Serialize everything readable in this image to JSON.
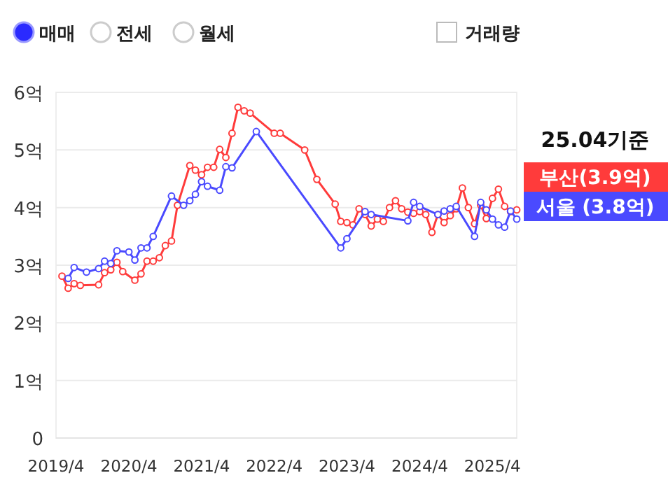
{
  "chart_data": {
    "type": "line",
    "legend_title": "25.04기준",
    "annotations": [
      "매매",
      "전세",
      "월세",
      "거래량"
    ],
    "xlim": [
      "2019-04",
      "2025-08"
    ],
    "xticks": [
      {
        "value": "2019-04",
        "label": "2019/4"
      },
      {
        "value": "2020-04",
        "label": "2020/4"
      },
      {
        "value": "2021-04",
        "label": "2021/4"
      },
      {
        "value": "2022-04",
        "label": "2022/4"
      },
      {
        "value": "2023-04",
        "label": "2023/4"
      },
      {
        "value": "2024-04",
        "label": "2024/4"
      },
      {
        "value": "2025-04",
        "label": "2025/4"
      }
    ],
    "ylim": [
      0,
      6
    ],
    "yticks": [
      0,
      {
        "value": 1,
        "label": "1억"
      },
      {
        "value": 2,
        "label": "2억"
      },
      {
        "value": 3,
        "label": "3억"
      },
      {
        "value": 4,
        "label": "4억"
      },
      {
        "value": 5,
        "label": "5억"
      },
      {
        "value": 6,
        "label": "6억"
      }
    ],
    "grid": "y",
    "legend": "right",
    "marker": "circle",
    "line_style": "solid",
    "series": [
      {
        "name": "부산(3.9억)",
        "color": "#ff3b3b",
        "x": [
          "2019-05",
          "2019-06",
          "2019-07",
          "2019-08",
          "2019-11",
          "2019-12",
          "2020-01",
          "2020-02",
          "2020-03",
          "2020-05",
          "2020-06",
          "2020-07",
          "2020-08",
          "2020-09",
          "2020-10",
          "2020-11",
          "2020-12",
          "2021-02",
          "2021-03",
          "2021-04",
          "2021-05",
          "2021-06",
          "2021-07",
          "2021-08",
          "2021-09",
          "2021-10",
          "2021-11",
          "2021-12",
          "2022-04",
          "2022-05",
          "2022-09",
          "2022-11",
          "2023-02",
          "2023-03",
          "2023-04",
          "2023-05",
          "2023-06",
          "2023-07",
          "2023-08",
          "2023-09",
          "2023-10",
          "2023-11",
          "2023-12",
          "2024-01",
          "2024-02",
          "2024-03",
          "2024-04",
          "2024-05",
          "2024-06",
          "2024-07",
          "2024-08",
          "2024-09",
          "2024-10",
          "2024-11",
          "2024-12",
          "2025-01",
          "2025-02",
          "2025-03",
          "2025-04",
          "2025-05",
          "2025-06",
          "2025-07",
          "2025-08"
        ],
        "values": [
          2.81,
          2.6,
          2.68,
          2.65,
          2.66,
          2.87,
          2.92,
          3.05,
          2.89,
          2.74,
          2.85,
          3.07,
          3.07,
          3.13,
          3.34,
          3.42,
          4.04,
          4.73,
          4.65,
          4.57,
          4.7,
          4.7,
          5.01,
          4.87,
          5.29,
          5.74,
          5.68,
          5.64,
          5.29,
          5.29,
          5.0,
          4.49,
          4.06,
          3.76,
          3.74,
          3.7,
          3.98,
          3.88,
          3.68,
          3.8,
          3.76,
          4.0,
          4.12,
          3.98,
          3.92,
          3.9,
          3.93,
          3.88,
          3.57,
          3.88,
          3.74,
          3.86,
          3.98,
          4.34,
          4.0,
          3.72,
          4.04,
          3.81,
          4.16,
          4.32,
          4.02,
          3.93,
          3.96
        ]
      },
      {
        "name": "서울 (3.8억)",
        "color": "#4a4aff",
        "x": [
          "2019-06",
          "2019-07",
          "2019-09",
          "2019-11",
          "2019-12",
          "2020-01",
          "2020-02",
          "2020-04",
          "2020-05",
          "2020-06",
          "2020-07",
          "2020-08",
          "2020-11",
          "2021-01",
          "2021-02",
          "2021-03",
          "2021-04",
          "2021-05",
          "2021-07",
          "2021-08",
          "2021-09",
          "2022-01",
          "2023-03",
          "2023-04",
          "2023-07",
          "2023-08",
          "2024-02",
          "2024-03",
          "2024-04",
          "2024-07",
          "2024-08",
          "2024-09",
          "2024-10",
          "2025-01",
          "2025-02",
          "2025-03",
          "2025-04",
          "2025-05",
          "2025-06",
          "2025-07",
          "2025-08"
        ],
        "values": [
          2.77,
          2.96,
          2.88,
          2.94,
          3.07,
          3.03,
          3.25,
          3.23,
          3.09,
          3.3,
          3.3,
          3.5,
          4.2,
          4.04,
          4.12,
          4.23,
          4.45,
          4.37,
          4.3,
          4.71,
          4.69,
          5.32,
          3.3,
          3.46,
          3.93,
          3.88,
          3.77,
          4.09,
          4.02,
          3.88,
          3.94,
          3.98,
          4.02,
          3.5,
          4.09,
          3.96,
          3.8,
          3.7,
          3.66,
          3.94,
          3.8
        ]
      }
    ]
  }
}
